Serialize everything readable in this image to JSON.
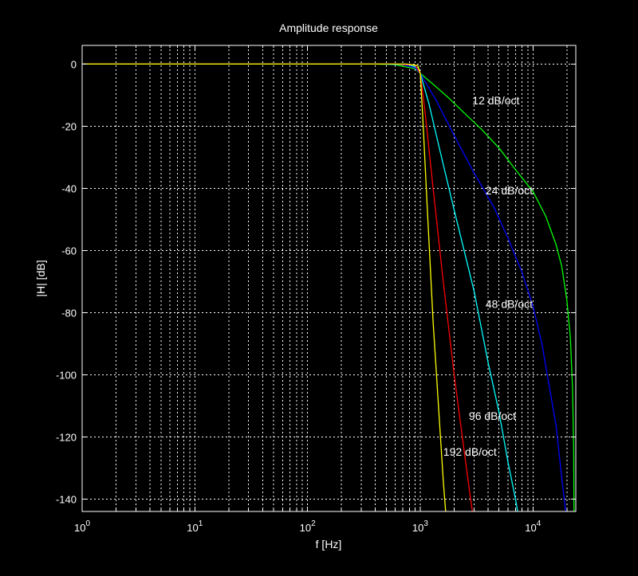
{
  "chart_data": {
    "type": "line",
    "title": "Amplitude response",
    "xlabel": "f [Hz]",
    "ylabel": "|H| [dB]",
    "x_scale": "log",
    "xlim": [
      1,
      24000
    ],
    "ylim": [
      -144,
      6
    ],
    "x_ticks": [
      {
        "value": 1,
        "base": "10",
        "exp": "0"
      },
      {
        "value": 10,
        "base": "10",
        "exp": "1"
      },
      {
        "value": 100,
        "base": "10",
        "exp": "2"
      },
      {
        "value": 1000,
        "base": "10",
        "exp": "3"
      },
      {
        "value": 10000,
        "base": "10",
        "exp": "4"
      }
    ],
    "y_ticks": [
      0,
      -20,
      -40,
      -60,
      -80,
      -100,
      -120,
      -140
    ],
    "grid": true,
    "colors": {
      "background": "#000000",
      "axes": "#ffffff",
      "grid": "#ffffff"
    },
    "series": [
      {
        "color": "#00ff00",
        "points": [
          [
            1,
            0
          ],
          [
            400,
            0
          ],
          [
            600,
            -0.2
          ],
          [
            900,
            -1.5
          ],
          [
            1000,
            -3
          ],
          [
            1300,
            -6.5
          ],
          [
            1800,
            -11
          ],
          [
            2500,
            -16
          ],
          [
            3500,
            -21
          ],
          [
            5000,
            -27
          ],
          [
            7000,
            -34
          ],
          [
            10000,
            -41
          ],
          [
            13000,
            -49
          ],
          [
            16000,
            -58
          ],
          [
            18000,
            -65
          ],
          [
            20000,
            -76
          ],
          [
            21500,
            -88
          ],
          [
            22500,
            -105
          ],
          [
            23000,
            -125
          ],
          [
            23100,
            -144
          ]
        ]
      },
      {
        "color": "#0000ff",
        "points": [
          [
            1,
            0
          ],
          [
            450,
            0
          ],
          [
            700,
            -0.2
          ],
          [
            900,
            -1.2
          ],
          [
            1000,
            -3
          ],
          [
            1400,
            -12
          ],
          [
            2000,
            -23
          ],
          [
            3000,
            -35
          ],
          [
            4500,
            -46
          ],
          [
            6000,
            -56
          ],
          [
            8000,
            -67
          ],
          [
            10000,
            -78
          ],
          [
            12000,
            -90
          ],
          [
            14000,
            -104
          ],
          [
            16000,
            -116
          ],
          [
            18000,
            -133
          ],
          [
            19500,
            -144
          ]
        ]
      },
      {
        "color": "#00ffff",
        "points": [
          [
            1,
            0
          ],
          [
            500,
            0
          ],
          [
            800,
            -0.2
          ],
          [
            950,
            -1.2
          ],
          [
            1000,
            -3
          ],
          [
            1200,
            -13
          ],
          [
            1500,
            -28
          ],
          [
            2000,
            -47
          ],
          [
            3000,
            -73
          ],
          [
            4000,
            -96
          ],
          [
            5000,
            -112
          ],
          [
            6000,
            -128
          ],
          [
            7000,
            -140
          ],
          [
            7300,
            -144
          ]
        ]
      },
      {
        "color": "#ff0000",
        "points": [
          [
            1,
            0
          ],
          [
            600,
            0
          ],
          [
            900,
            -0.3
          ],
          [
            1000,
            -3
          ],
          [
            1100,
            -15
          ],
          [
            1300,
            -40
          ],
          [
            1600,
            -70
          ],
          [
            2000,
            -100
          ],
          [
            2400,
            -122
          ],
          [
            2800,
            -140
          ],
          [
            2900,
            -144
          ]
        ]
      },
      {
        "color": "#ffff00",
        "points": [
          [
            1,
            0
          ],
          [
            750,
            0
          ],
          [
            950,
            -0.5
          ],
          [
            1000,
            -3
          ],
          [
            1050,
            -16
          ],
          [
            1150,
            -45
          ],
          [
            1300,
            -83
          ],
          [
            1450,
            -110
          ],
          [
            1600,
            -134
          ],
          [
            1680,
            -144
          ]
        ]
      }
    ],
    "annotations": [
      {
        "text": "12 dB/oct",
        "x": 2900,
        "y": -13
      },
      {
        "text": "24 dB/oct",
        "x": 3800,
        "y": -42
      },
      {
        "text": "48 dB/oct",
        "x": 3800,
        "y": -78.5
      },
      {
        "text": "96 dB/oct",
        "x": 2700,
        "y": -114.5
      },
      {
        "text": "192 dB/oct",
        "x": 1600,
        "y": -126
      }
    ]
  }
}
